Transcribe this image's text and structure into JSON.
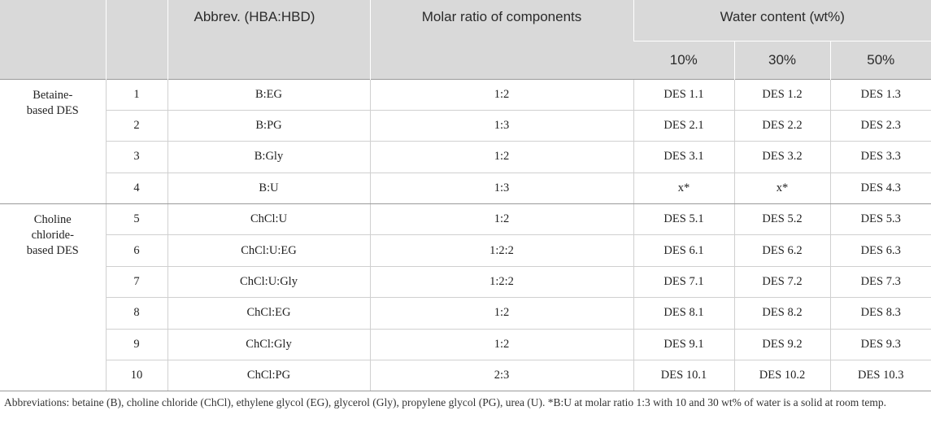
{
  "header": {
    "abbrev": "Abbrev. (HBA:HBD)",
    "molar_ratio": "Molar ratio of components",
    "water_content": "Water content (wt%)",
    "w10": "10%",
    "w30": "30%",
    "w50": "50%"
  },
  "groups": [
    {
      "label": "Betaine-based DES",
      "line1": "Betaine-",
      "line2": "based DES"
    },
    {
      "label": "Choline chloride-based DES",
      "line1": "Choline",
      "line2": "chloride-",
      "line3": "based DES"
    }
  ],
  "rows": [
    {
      "no": "1",
      "abbrev": "B:EG",
      "ratio": "1:2",
      "w10": "DES 1.1",
      "w30": "DES 1.2",
      "w50": "DES 1.3"
    },
    {
      "no": "2",
      "abbrev": "B:PG",
      "ratio": "1:3",
      "w10": "DES 2.1",
      "w30": "DES 2.2",
      "w50": "DES 2.3"
    },
    {
      "no": "3",
      "abbrev": "B:Gly",
      "ratio": "1:2",
      "w10": "DES 3.1",
      "w30": "DES 3.2",
      "w50": "DES 3.3"
    },
    {
      "no": "4",
      "abbrev": "B:U",
      "ratio": "1:3",
      "w10": "x*",
      "w30": "x*",
      "w50": "DES 4.3"
    },
    {
      "no": "5",
      "abbrev": "ChCl:U",
      "ratio": "1:2",
      "w10": "DES 5.1",
      "w30": "DES 5.2",
      "w50": "DES 5.3"
    },
    {
      "no": "6",
      "abbrev": "ChCl:U:EG",
      "ratio": "1:2:2",
      "w10": "DES 6.1",
      "w30": "DES 6.2",
      "w50": "DES 6.3"
    },
    {
      "no": "7",
      "abbrev": "ChCl:U:Gly",
      "ratio": "1:2:2",
      "w10": "DES 7.1",
      "w30": "DES 7.2",
      "w50": "DES 7.3"
    },
    {
      "no": "8",
      "abbrev": "ChCl:EG",
      "ratio": "1:2",
      "w10": "DES 8.1",
      "w30": "DES 8.2",
      "w50": "DES 8.3"
    },
    {
      "no": "9",
      "abbrev": "ChCl:Gly",
      "ratio": "1:2",
      "w10": "DES 9.1",
      "w30": "DES 9.2",
      "w50": "DES 9.3"
    },
    {
      "no": "10",
      "abbrev": "ChCl:PG",
      "ratio": "2:3",
      "w10": "DES 10.1",
      "w30": "DES 10.2",
      "w50": "DES 10.3"
    }
  ],
  "footnote": "Abbreviations: betaine (B), choline chloride (ChCl), ethylene glycol (EG), glycerol (Gly), propylene glycol (PG), urea (U). *B:U at molar ratio 1:3 with 10 and 30 wt% of water is a solid at room temp."
}
